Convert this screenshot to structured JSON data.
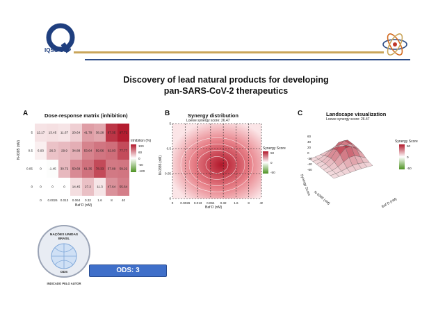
{
  "header": {
    "logo_text": "IQSC USP",
    "title_line1": "Discovery of lead natural products for developing",
    "title_line2": "pan-SARS-CoV-2 therapeutics"
  },
  "panelA": {
    "letter": "A",
    "title": "Dose-response matrix (inhibition)",
    "ylabel": "N-0385 (nM)",
    "xlabel": "Baf D (nM)",
    "legend_title": "Inhibition (%)",
    "legend_ticks": [
      "100",
      "60",
      "0",
      "-50",
      "-100"
    ]
  },
  "panelB": {
    "letter": "B",
    "title": "Synergy distribution",
    "subtitle": "Loewe synergy score: 26.47",
    "ylabel": "N-0385 (nM)",
    "xlabel": "Baf D (nM)",
    "legend_title": "Synergy Score",
    "legend_ticks": [
      "50",
      "0",
      "-50"
    ]
  },
  "panelC": {
    "letter": "C",
    "title": "Landscape visualization",
    "subtitle": "Loewe synergy score: 26.47",
    "zlabel": "Synergy Score",
    "xlabel": "Baf D (nM)",
    "ylabel": "N-0385 (nM)",
    "legend_title": "Synergy Score",
    "legend_ticks": [
      "50",
      "0",
      "-50"
    ],
    "z_ticks": [
      "60",
      "40",
      "20",
      "0",
      "-20",
      "-40",
      "-60"
    ]
  },
  "ods": {
    "badge_line1": "NAÇÕES UNIDAS",
    "badge_line2": "BRASIL",
    "badge_line3": "ODS",
    "badge_line4": "INDICADO PELO AUTOR",
    "banner": "ODS: 3"
  },
  "chart_data": [
    {
      "type": "heatmap",
      "title": "Dose-response matrix (inhibition)",
      "xlabel": "Baf D (nM)",
      "ylabel": "N-0385 (nM)",
      "x": [
        "0",
        "0.0026",
        "0.013",
        "0.064",
        "0.32",
        "1.6",
        "8",
        "40"
      ],
      "y": [
        "5",
        "0.5",
        "0.05",
        "0"
      ],
      "values": [
        [
          12.17,
          13.45,
          11.67,
          20.64,
          41.79,
          38.28,
          87.35,
          97.72
        ],
        [
          6.93,
          26.3,
          29.9,
          34.88,
          53.64,
          59.56,
          62.93,
          77.77
        ],
        [
          0,
          -1.45,
          30.72,
          50.68,
          61.35,
          78.33,
          57.89,
          59.22
        ],
        [
          0,
          0,
          0,
          14.45,
          27.2,
          11.3,
          47.64,
          55.64
        ]
      ],
      "legend": "Inhibition (%)"
    },
    {
      "type": "heatmap",
      "title": "Synergy distribution",
      "subtitle": "Loewe synergy score: 26.47",
      "xlabel": "Baf D (nM)",
      "ylabel": "N-0385 (nM)",
      "x": [
        "0",
        "0.0026",
        "0.013",
        "0.064",
        "0.32",
        "1.6",
        "8",
        "40"
      ],
      "y": [
        "5",
        "0.5",
        "0.05",
        "0"
      ],
      "legend": "Synergy Score"
    },
    {
      "type": "area",
      "title": "Landscape visualization",
      "subtitle": "Loewe synergy score: 26.47",
      "xlabel": "Baf D (nM)",
      "ylabel": "N-0385 (nM)",
      "zlabel": "Synergy Score",
      "legend": "Synergy Score"
    }
  ]
}
